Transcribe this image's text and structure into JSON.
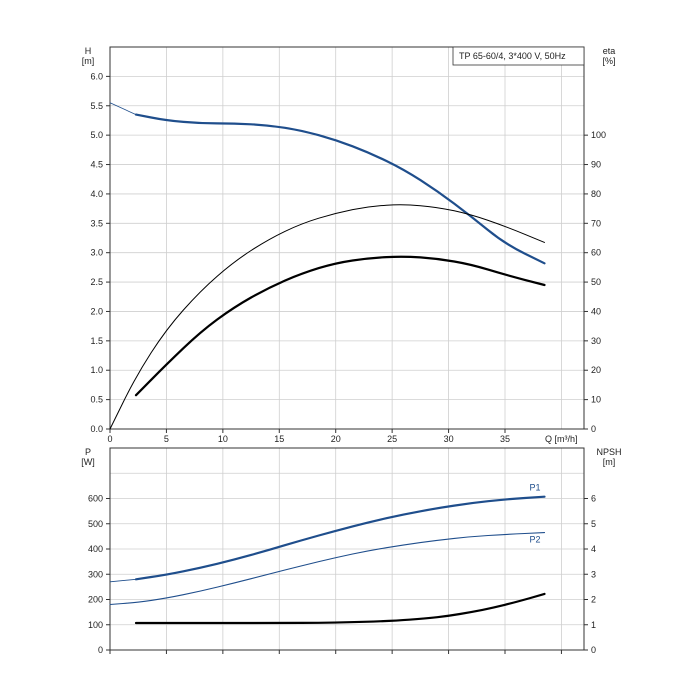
{
  "chart_data": [
    {
      "type": "line",
      "legend": "TP 65-60/4, 3*400 V, 50Hz",
      "xlabel": "Q [m³/h]",
      "xlim": [
        0,
        42
      ],
      "xticks": [
        "0",
        "5",
        "10",
        "15",
        "20",
        "25",
        "30",
        "35"
      ],
      "ylabel_left": [
        "H",
        "[m]"
      ],
      "ylim_left": [
        0,
        6.5
      ],
      "yticks_left": [
        "0.0",
        "0.5",
        "1.0",
        "1.5",
        "2.0",
        "2.5",
        "3.0",
        "3.5",
        "4.0",
        "4.5",
        "5.0",
        "5.5",
        "6.0"
      ],
      "ylabel_right": [
        "eta",
        "[%]"
      ],
      "ylim_right": [
        0,
        130
      ],
      "yticks_right": [
        "0",
        "10",
        "20",
        "30",
        "40",
        "50",
        "60",
        "70",
        "80",
        "90",
        "100"
      ],
      "grid": true,
      "series": [
        {
          "axis": "left",
          "color": "#1f4e8c",
          "x": [
            0,
            2.3,
            5,
            8,
            11,
            14,
            17,
            20,
            23,
            26,
            29,
            32,
            35,
            38.5
          ],
          "y": [
            5.55,
            5.35,
            5.25,
            5.2,
            5.2,
            5.17,
            5.08,
            4.92,
            4.7,
            4.42,
            4.05,
            3.62,
            3.15,
            2.82
          ],
          "thin_x": [
            0,
            2.3
          ],
          "thin_y": [
            5.55,
            5.35
          ]
        },
        {
          "axis": "right",
          "color": "#000000",
          "x": [
            0,
            2.3,
            5,
            8,
            11,
            14,
            17,
            20,
            23,
            26,
            29,
            32,
            35,
            38.5
          ],
          "y": [
            0,
            18,
            34,
            47,
            57,
            64.5,
            70,
            73.5,
            75.8,
            76.5,
            75.5,
            73,
            69,
            63.5
          ]
        },
        {
          "axis": "right",
          "color": "#000000",
          "x": [
            2.3,
            5,
            8,
            11,
            14,
            17,
            20,
            23,
            26,
            29,
            32,
            35,
            38.5
          ],
          "y": [
            11.5,
            22,
            33,
            41.5,
            48,
            53,
            56.5,
            58.2,
            58.8,
            58,
            56,
            52.5,
            49
          ]
        }
      ]
    },
    {
      "type": "line",
      "xlim": [
        0,
        42
      ],
      "ylabel_left": [
        "P",
        "[W]"
      ],
      "ylim_left": [
        0,
        800
      ],
      "yticks_left": [
        "0",
        "100",
        "200",
        "300",
        "400",
        "500",
        "600"
      ],
      "ylabel_right": [
        "NPSH",
        "[m]"
      ],
      "ylim_right": [
        0,
        8
      ],
      "yticks_right": [
        "0",
        "1",
        "2",
        "3",
        "4",
        "5",
        "6"
      ],
      "grid": true,
      "series": [
        {
          "name": "P1",
          "axis": "left",
          "color": "#1f4e8c",
          "x": [
            0,
            2.3,
            5,
            8,
            11,
            14,
            17,
            20,
            23,
            26,
            29,
            32,
            35,
            38.5
          ],
          "y": [
            270,
            280,
            298,
            325,
            358,
            395,
            435,
            472,
            507,
            537,
            562,
            582,
            597,
            607
          ],
          "thin_x": [
            0,
            2.3
          ],
          "thin_y": [
            270,
            280
          ]
        },
        {
          "name": "P2",
          "axis": "left",
          "color": "#1f4e8c",
          "x": [
            0,
            2.3,
            5,
            8,
            11,
            14,
            17,
            20,
            23,
            26,
            29,
            32,
            35,
            38.5
          ],
          "y": [
            180,
            188,
            205,
            233,
            265,
            300,
            334,
            366,
            394,
            416,
            435,
            449,
            458,
            465
          ]
        },
        {
          "axis": "right",
          "color": "#000000",
          "x": [
            2.3,
            8,
            14,
            20,
            25,
            28,
            30,
            32,
            34,
            36,
            38.5
          ],
          "y": [
            1.07,
            1.07,
            1.07,
            1.08,
            1.15,
            1.25,
            1.35,
            1.5,
            1.68,
            1.9,
            2.22
          ]
        }
      ]
    }
  ]
}
